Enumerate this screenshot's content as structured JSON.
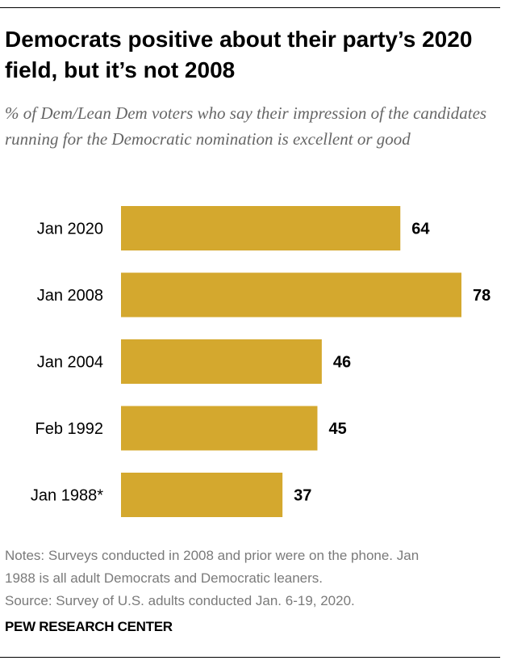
{
  "header": {
    "title": "Democrats positive about their party’s 2020 field, but it’s not 2008",
    "subtitle": "% of Dem/Lean Dem voters who say their impression of the candidates running for the Democratic nomination is excellent or good"
  },
  "chart_data": {
    "type": "bar",
    "orientation": "horizontal",
    "categories": [
      "Jan 2020",
      "Jan 2008",
      "Jan 2004",
      "Feb 1992",
      "Jan 1988*"
    ],
    "values": [
      64,
      78,
      46,
      45,
      37
    ],
    "title": "Democrats positive about their party’s 2020 field, but it’s not 2008",
    "xlabel": "",
    "ylabel": "",
    "xlim": [
      0,
      78
    ],
    "grid": false,
    "legend": "none",
    "bar_color": "#d4a82e"
  },
  "footer": {
    "notes_line1": "Notes: Surveys conducted in 2008 and prior were on the phone. Jan",
    "notes_line2": "1988 is all adult Democrats and Democratic leaners.",
    "source": "Source: Survey of U.S. adults conducted Jan. 6-19, 2020.",
    "org": "PEW RESEARCH CENTER"
  }
}
